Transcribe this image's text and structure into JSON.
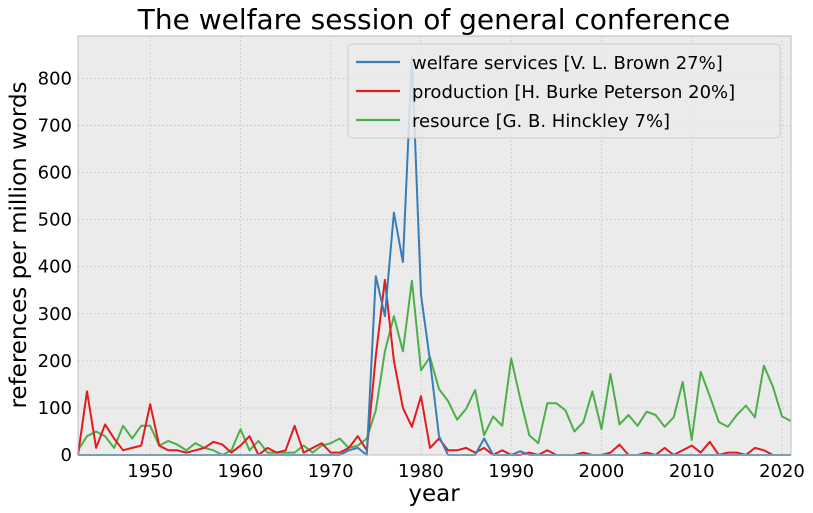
{
  "chart_data": {
    "type": "line",
    "title": "The welfare session of general conference",
    "xlabel": "year",
    "ylabel": "references per million words",
    "xlim": [
      1942,
      2021
    ],
    "ylim": [
      0,
      890
    ],
    "xticks": [
      1950,
      1960,
      1970,
      1980,
      1990,
      2000,
      2010,
      2020
    ],
    "yticks": [
      0,
      100,
      200,
      300,
      400,
      500,
      600,
      700,
      800
    ],
    "grid": true,
    "legend_position": "top-right",
    "background": "#ebebeb",
    "series": [
      {
        "name": "welfare services [V. L. Brown 27%]",
        "color": "#377eb8",
        "x": [
          1942,
          1943,
          1944,
          1945,
          1946,
          1947,
          1948,
          1949,
          1950,
          1951,
          1952,
          1953,
          1954,
          1955,
          1956,
          1957,
          1958,
          1959,
          1960,
          1961,
          1962,
          1963,
          1964,
          1965,
          1966,
          1967,
          1968,
          1969,
          1970,
          1971,
          1972,
          1973,
          1974,
          1975,
          1976,
          1977,
          1978,
          1979,
          1980,
          1981,
          1982,
          1983,
          1984,
          1985,
          1986,
          1987,
          1988,
          1989,
          1990,
          1991,
          1992,
          1993,
          1994,
          1995,
          1996,
          1997,
          1998,
          1999,
          2000,
          2001,
          2002,
          2003,
          2004,
          2005,
          2006,
          2007,
          2008,
          2009,
          2010,
          2011,
          2012,
          2013,
          2014,
          2015,
          2016,
          2017,
          2018,
          2019,
          2020,
          2021
        ],
        "y": [
          0,
          0,
          0,
          0,
          0,
          0,
          0,
          0,
          0,
          0,
          0,
          0,
          0,
          0,
          0,
          0,
          0,
          0,
          0,
          0,
          0,
          0,
          0,
          0,
          0,
          0,
          0,
          0,
          0,
          0,
          10,
          15,
          0,
          380,
          295,
          515,
          410,
          845,
          340,
          200,
          40,
          0,
          0,
          0,
          0,
          35,
          0,
          0,
          0,
          8,
          0,
          0,
          0,
          0,
          0,
          0,
          0,
          0,
          0,
          0,
          0,
          0,
          0,
          0,
          0,
          0,
          0,
          0,
          0,
          0,
          0,
          0,
          0,
          0,
          0,
          0,
          0,
          0,
          0,
          0
        ]
      },
      {
        "name": "production [H. Burke Peterson 20%]",
        "color": "#e41a1c",
        "x": [
          1942,
          1943,
          1944,
          1945,
          1946,
          1947,
          1948,
          1949,
          1950,
          1951,
          1952,
          1953,
          1954,
          1955,
          1956,
          1957,
          1958,
          1959,
          1960,
          1961,
          1962,
          1963,
          1964,
          1965,
          1966,
          1967,
          1968,
          1969,
          1970,
          1971,
          1972,
          1973,
          1974,
          1975,
          1976,
          1977,
          1978,
          1979,
          1980,
          1981,
          1982,
          1983,
          1984,
          1985,
          1986,
          1987,
          1988,
          1989,
          1990,
          1991,
          1992,
          1993,
          1994,
          1995,
          1996,
          1997,
          1998,
          1999,
          2000,
          2001,
          2002,
          2003,
          2004,
          2005,
          2006,
          2007,
          2008,
          2009,
          2010,
          2011,
          2012,
          2013,
          2014,
          2015,
          2016,
          2017,
          2018,
          2019,
          2020,
          2021
        ],
        "y": [
          0,
          135,
          15,
          65,
          35,
          10,
          15,
          20,
          108,
          20,
          10,
          10,
          5,
          10,
          15,
          28,
          22,
          5,
          20,
          40,
          0,
          15,
          5,
          10,
          62,
          5,
          15,
          25,
          5,
          5,
          15,
          40,
          10,
          210,
          372,
          200,
          100,
          60,
          125,
          15,
          35,
          10,
          10,
          15,
          5,
          15,
          0,
          10,
          0,
          0,
          5,
          0,
          10,
          0,
          0,
          0,
          5,
          0,
          0,
          5,
          22,
          0,
          0,
          5,
          0,
          15,
          0,
          10,
          20,
          5,
          28,
          0,
          5,
          5,
          0,
          15,
          10,
          0,
          0,
          0
        ]
      },
      {
        "name": "resource [G. B. Hinckley 7%]",
        "color": "#4daf4a",
        "x": [
          1942,
          1943,
          1944,
          1945,
          1946,
          1947,
          1948,
          1949,
          1950,
          1951,
          1952,
          1953,
          1954,
          1955,
          1956,
          1957,
          1958,
          1959,
          1960,
          1961,
          1962,
          1963,
          1964,
          1965,
          1966,
          1967,
          1968,
          1969,
          1970,
          1971,
          1972,
          1973,
          1974,
          1975,
          1976,
          1977,
          1978,
          1979,
          1980,
          1981,
          1982,
          1983,
          1984,
          1985,
          1986,
          1987,
          1988,
          1989,
          1990,
          1991,
          1992,
          1993,
          1994,
          1995,
          1996,
          1997,
          1998,
          1999,
          2000,
          2001,
          2002,
          2003,
          2004,
          2005,
          2006,
          2007,
          2008,
          2009,
          2010,
          2011,
          2012,
          2013,
          2014,
          2015,
          2016,
          2017,
          2018,
          2019,
          2020,
          2021
        ],
        "y": [
          10,
          40,
          50,
          40,
          15,
          62,
          35,
          62,
          62,
          20,
          30,
          22,
          10,
          25,
          15,
          10,
          0,
          10,
          55,
          10,
          30,
          5,
          5,
          5,
          5,
          20,
          5,
          20,
          25,
          35,
          15,
          20,
          35,
          95,
          220,
          295,
          220,
          370,
          180,
          208,
          140,
          115,
          75,
          98,
          138,
          42,
          82,
          62,
          205,
          120,
          42,
          25,
          110,
          110,
          95,
          50,
          70,
          135,
          55,
          172,
          65,
          85,
          62,
          92,
          85,
          60,
          80,
          155,
          32,
          177,
          125,
          70,
          60,
          85,
          105,
          80,
          190,
          145,
          82,
          72
        ]
      }
    ]
  }
}
